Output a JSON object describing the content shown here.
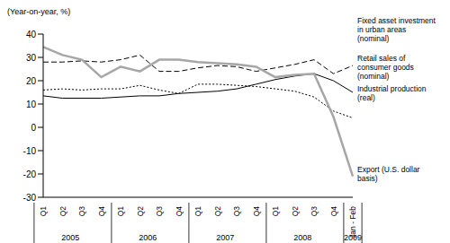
{
  "chart_data": {
    "type": "line",
    "y_label": "(Year-on-year, %)",
    "categories": [
      "Q1",
      "Q2",
      "Q3",
      "Q4",
      "Q1",
      "Q2",
      "Q3",
      "Q4",
      "Q1",
      "Q2",
      "Q3",
      "Q4",
      "Q1",
      "Q2",
      "Q3",
      "Q4",
      "Jan - Feb"
    ],
    "category_groups": [
      "2005",
      "2005",
      "2005",
      "2005",
      "2006",
      "2006",
      "2006",
      "2006",
      "2007",
      "2007",
      "2007",
      "2007",
      "2008",
      "2008",
      "2008",
      "2008",
      "2009"
    ],
    "ylim": [
      -30,
      40
    ],
    "yticks": [
      -30,
      -20,
      -10,
      0,
      10,
      20,
      30,
      40
    ],
    "grid": false,
    "series": [
      {
        "name": "Fixed asset investment in urban areas (nominal)",
        "color": "#000000",
        "line_style": "dashed",
        "values": [
          28,
          28,
          28.5,
          28,
          29,
          31,
          24,
          24,
          25.5,
          26.5,
          26,
          24,
          25.5,
          27,
          29,
          23,
          26.5
        ]
      },
      {
        "name": "Retail sales of consumer goods (nominal)",
        "color": "#000000",
        "line_style": "solid",
        "values": [
          13.5,
          12.5,
          12.5,
          12.5,
          13,
          13.5,
          13.5,
          14.5,
          15,
          15.5,
          16.5,
          18.5,
          20.5,
          22,
          23,
          20,
          15
        ]
      },
      {
        "name": "Industrial production (real)",
        "color": "#000000",
        "line_style": "dotted",
        "values": [
          16,
          16.5,
          16,
          16.5,
          16.5,
          18,
          16,
          14.5,
          18.5,
          18.5,
          18,
          17.5,
          16.5,
          15.5,
          13,
          7,
          4
        ]
      },
      {
        "name": "Export (U.S. dollar basis)",
        "color": "#a6a6a6",
        "line_style": "solid",
        "values": [
          34.5,
          31,
          29,
          21.5,
          26,
          24,
          29,
          29,
          28,
          27.5,
          27,
          26,
          21.5,
          22.5,
          23,
          4.5,
          -21
        ]
      }
    ]
  }
}
